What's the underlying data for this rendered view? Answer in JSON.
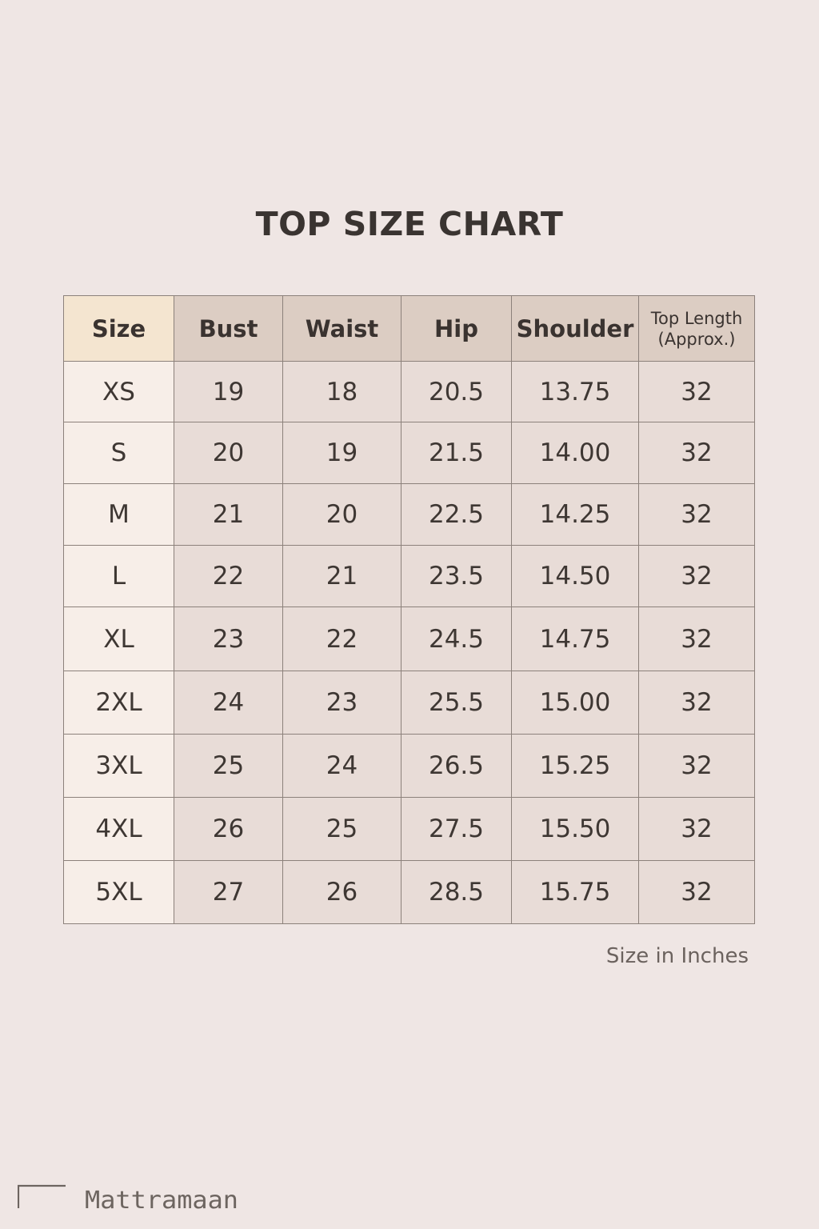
{
  "title": "TOP SIZE CHART",
  "unit_note": "Size in Inches",
  "brand": "Mattramaan",
  "colors": {
    "background": "#efe6e4",
    "header": "#dccdc3",
    "size_header": "#f4e5d0",
    "cell": "#e8dcd7",
    "size_cell": "#f7eee8",
    "border": "#8c817b"
  },
  "chart_data": {
    "type": "table",
    "title": "TOP SIZE CHART",
    "columns": [
      "Size",
      "Bust",
      "Waist",
      "Hip",
      "Shoulder",
      "Top Length (Approx.)"
    ],
    "header_lines": {
      "top_length_1": "Top Length",
      "top_length_2": "(Approx.)"
    },
    "rows": [
      [
        "XS",
        "19",
        "18",
        "20.5",
        "13.75",
        "32"
      ],
      [
        "S",
        "20",
        "19",
        "21.5",
        "14.00",
        "32"
      ],
      [
        "M",
        "21",
        "20",
        "22.5",
        "14.25",
        "32"
      ],
      [
        "L",
        "22",
        "21",
        "23.5",
        "14.50",
        "32"
      ],
      [
        "XL",
        "23",
        "22",
        "24.5",
        "14.75",
        "32"
      ],
      [
        "2XL",
        "24",
        "23",
        "25.5",
        "15.00",
        "32"
      ],
      [
        "3XL",
        "25",
        "24",
        "26.5",
        "15.25",
        "32"
      ],
      [
        "4XL",
        "26",
        "25",
        "27.5",
        "15.50",
        "32"
      ],
      [
        "5XL",
        "27",
        "26",
        "28.5",
        "15.75",
        "32"
      ]
    ]
  }
}
